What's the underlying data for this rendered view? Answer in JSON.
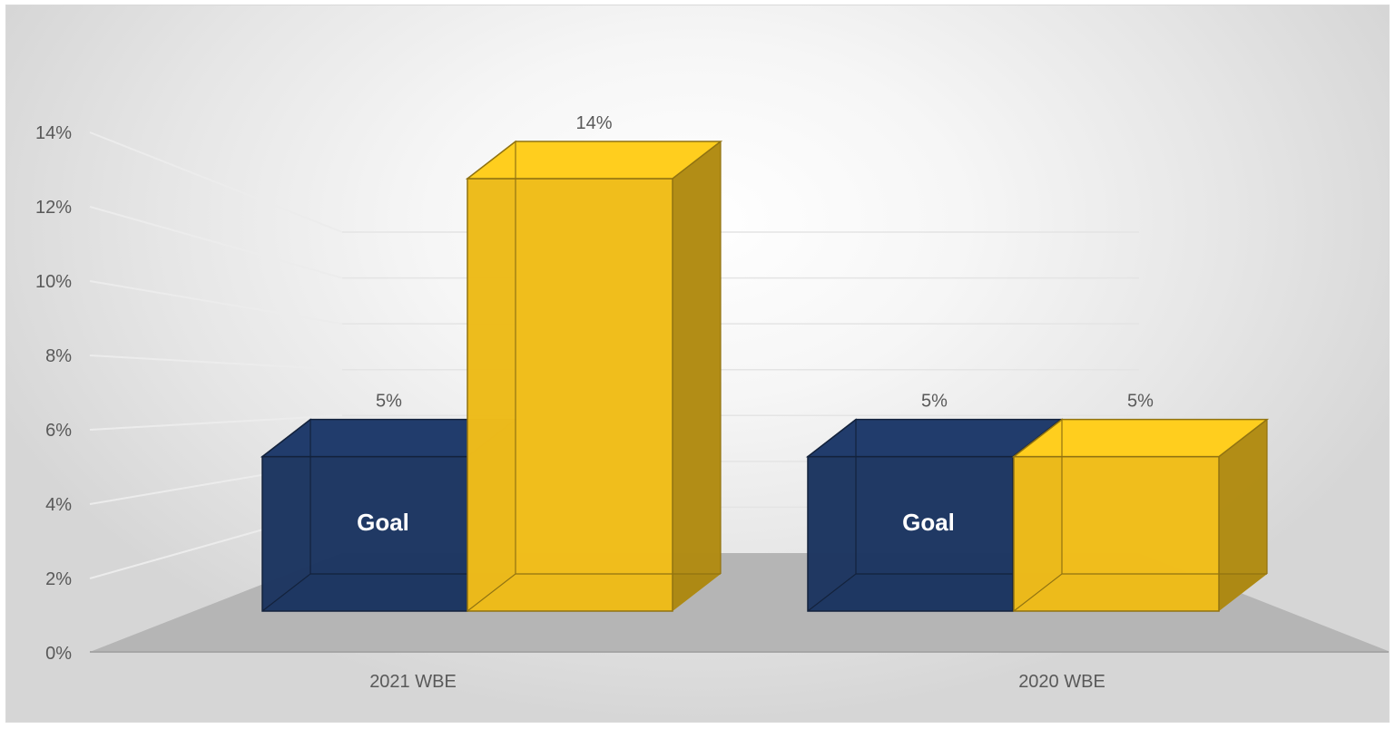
{
  "chart_data": {
    "type": "bar",
    "style": "3d-column",
    "categories": [
      "2021 WBE",
      "2020 WBE"
    ],
    "series": [
      {
        "values": [
          5,
          5
        ],
        "color": "#1f3864",
        "bar_text": [
          "Goal",
          "Goal"
        ],
        "data_labels": [
          "5%",
          "5%"
        ]
      },
      {
        "values": [
          14,
          5
        ],
        "color": "#f2bf1c",
        "data_labels": [
          "14%",
          "5%"
        ]
      }
    ],
    "ylim": [
      0,
      14
    ],
    "yticks": [
      "0%",
      "2%",
      "4%",
      "6%",
      "8%",
      "10%",
      "12%",
      "14%"
    ],
    "grid": true,
    "legend": "none",
    "title": "",
    "xlabel": "",
    "ylabel": ""
  }
}
